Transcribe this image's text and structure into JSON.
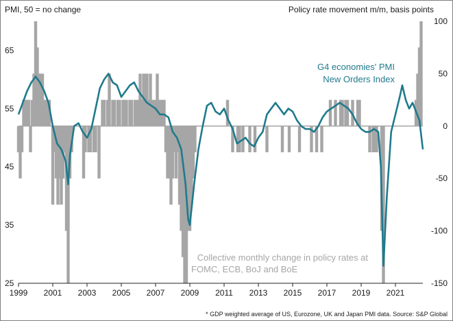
{
  "chart_data": {
    "type": "bar+line",
    "left_axis_label": "PMI, 50 = no change",
    "right_axis_label": "Policy rate movement m/m, basis points",
    "left_ylim": [
      25,
      70
    ],
    "left_ticks": [
      25,
      35,
      45,
      55,
      65
    ],
    "right_ylim": [
      -150,
      100
    ],
    "right_ticks": [
      -150,
      -100,
      -50,
      0,
      50,
      100
    ],
    "x_range": [
      1999.0,
      2022.6
    ],
    "x_ticks": [
      1999,
      2001,
      2003,
      2005,
      2007,
      2009,
      2011,
      2013,
      2015,
      2017,
      2019,
      2021
    ],
    "x_tick_labels": [
      "1999",
      "2001",
      "2003",
      "2005",
      "2007",
      "2009",
      "2011",
      "2013",
      "2015",
      "2017",
      "2019",
      "2021"
    ],
    "grid": false,
    "legend": "none",
    "series": [
      {
        "name": "G4 economies' PMI New Orders Index",
        "axis": "left",
        "kind": "line",
        "color": "#1f7a8c",
        "x": [
          1999.0,
          1999.25,
          1999.5,
          1999.75,
          2000.0,
          2000.25,
          2000.5,
          2000.75,
          2001.0,
          2001.25,
          2001.5,
          2001.75,
          2001.9,
          2002.0,
          2002.25,
          2002.5,
          2002.75,
          2003.0,
          2003.25,
          2003.5,
          2003.75,
          2004.0,
          2004.25,
          2004.5,
          2004.75,
          2005.0,
          2005.25,
          2005.5,
          2005.75,
          2006.0,
          2006.25,
          2006.5,
          2006.75,
          2007.0,
          2007.25,
          2007.5,
          2007.75,
          2008.0,
          2008.25,
          2008.5,
          2008.75,
          2008.9,
          2009.0,
          2009.25,
          2009.5,
          2009.75,
          2010.0,
          2010.25,
          2010.5,
          2010.75,
          2011.0,
          2011.25,
          2011.5,
          2011.75,
          2012.0,
          2012.25,
          2012.5,
          2012.75,
          2013.0,
          2013.25,
          2013.5,
          2013.75,
          2014.0,
          2014.25,
          2014.5,
          2014.75,
          2015.0,
          2015.25,
          2015.5,
          2015.75,
          2016.0,
          2016.25,
          2016.5,
          2016.75,
          2017.0,
          2017.25,
          2017.5,
          2017.75,
          2018.0,
          2018.25,
          2018.5,
          2018.75,
          2019.0,
          2019.25,
          2019.5,
          2019.75,
          2020.0,
          2020.15,
          2020.3,
          2020.5,
          2020.75,
          2021.0,
          2021.25,
          2021.4,
          2021.6,
          2021.8,
          2022.0,
          2022.2,
          2022.4,
          2022.6
        ],
        "values": [
          54.0,
          56.0,
          58.0,
          59.5,
          60.5,
          59.5,
          58.0,
          56.0,
          52.0,
          49.0,
          48.0,
          46.0,
          42.0,
          47.0,
          52.0,
          52.5,
          51.0,
          50.0,
          51.5,
          55.0,
          58.5,
          60.0,
          61.0,
          59.5,
          59.0,
          57.0,
          58.0,
          59.0,
          59.5,
          58.0,
          57.0,
          56.0,
          55.5,
          55.0,
          54.0,
          54.0,
          53.5,
          51.0,
          50.0,
          48.0,
          42.0,
          36.0,
          35.0,
          42.0,
          48.0,
          52.0,
          55.5,
          56.0,
          54.5,
          54.0,
          55.0,
          53.0,
          51.5,
          49.0,
          49.5,
          50.0,
          49.0,
          48.5,
          50.0,
          51.0,
          54.0,
          55.0,
          56.0,
          55.0,
          54.0,
          55.0,
          54.5,
          53.0,
          52.0,
          51.5,
          51.5,
          51.0,
          52.0,
          53.5,
          54.5,
          55.0,
          55.5,
          56.0,
          55.5,
          55.0,
          54.0,
          52.5,
          51.5,
          51.0,
          51.0,
          51.5,
          51.0,
          45.0,
          28.0,
          40.0,
          51.0,
          54.0,
          57.0,
          59.0,
          56.5,
          55.0,
          56.0,
          54.5,
          53.0,
          48.0
        ]
      },
      {
        "name": "Collective monthly change in policy rates at FOMC, ECB, BoJ and BoE",
        "axis": "right",
        "kind": "bar",
        "color": "#a6a6a6",
        "x": [
          1999.0,
          1999.1,
          1999.2,
          1999.3,
          1999.4,
          1999.5,
          1999.6,
          1999.7,
          1999.8,
          1999.9,
          2000.0,
          2000.1,
          2000.2,
          2000.3,
          2000.4,
          2000.5,
          2000.6,
          2000.7,
          2000.8,
          2001.0,
          2001.1,
          2001.2,
          2001.3,
          2001.4,
          2001.5,
          2001.6,
          2001.7,
          2001.8,
          2001.9,
          2002.0,
          2002.1,
          2002.8,
          2002.9,
          2003.1,
          2003.2,
          2003.4,
          2003.5,
          2003.7,
          2003.9,
          2004.0,
          2004.2,
          2004.3,
          2004.5,
          2004.6,
          2004.8,
          2004.9,
          2005.1,
          2005.2,
          2005.3,
          2005.5,
          2005.6,
          2005.8,
          2005.9,
          2006.0,
          2006.1,
          2006.2,
          2006.3,
          2006.4,
          2006.5,
          2006.6,
          2006.7,
          2006.8,
          2006.9,
          2007.0,
          2007.1,
          2007.2,
          2007.3,
          2007.4,
          2007.5,
          2007.6,
          2007.7,
          2007.8,
          2007.9,
          2008.0,
          2008.1,
          2008.2,
          2008.3,
          2008.4,
          2008.5,
          2008.6,
          2008.7,
          2008.8,
          2008.9,
          2009.0,
          2009.1,
          2009.2,
          2009.3,
          2011.2,
          2011.5,
          2011.8,
          2011.9,
          2012.1,
          2012.5,
          2012.8,
          2013.5,
          2014.4,
          2014.8,
          2015.4,
          2016.1,
          2016.4,
          2016.7,
          2017.2,
          2017.5,
          2017.8,
          2017.9,
          2018.1,
          2018.2,
          2018.5,
          2018.8,
          2018.9,
          2019.5,
          2019.7,
          2019.8,
          2019.9,
          2020.2,
          2020.3,
          2022.2,
          2022.3,
          2022.4,
          2022.5
        ],
        "values": [
          -25,
          -50,
          -25,
          25,
          25,
          25,
          25,
          -25,
          25,
          50,
          100,
          75,
          50,
          50,
          50,
          25,
          25,
          25,
          25,
          -75,
          -25,
          -50,
          -75,
          -50,
          -75,
          -50,
          -25,
          -100,
          -150,
          -50,
          -25,
          -50,
          -25,
          -25,
          -25,
          -25,
          -25,
          -50,
          25,
          25,
          25,
          50,
          25,
          25,
          25,
          25,
          25,
          25,
          25,
          25,
          25,
          25,
          25,
          25,
          50,
          25,
          50,
          50,
          50,
          25,
          50,
          25,
          25,
          25,
          50,
          25,
          25,
          25,
          25,
          -25,
          -50,
          -50,
          -75,
          -50,
          -25,
          -50,
          -25,
          -75,
          -100,
          -125,
          -150,
          -175,
          -100,
          -100,
          -75,
          -50,
          -25,
          25,
          -25,
          -25,
          -25,
          -25,
          -25,
          -25,
          -25,
          -25,
          -25,
          -25,
          -25,
          -25,
          -25,
          25,
          25,
          25,
          25,
          25,
          25,
          25,
          25,
          25,
          -25,
          -25,
          -25,
          -25,
          -100,
          -175,
          25,
          50,
          75,
          100
        ]
      }
    ],
    "annotations": {
      "pmi_line1": "G4 economies' PMI",
      "pmi_line2": "New Orders Index",
      "rate_line1": "Collective monthly change in policy rates at",
      "rate_line2": "FOMC, ECB, BoJ and BoE"
    },
    "source": "* GDP weighted average of US, Eurozone, UK and Japan PMI data. Source: S&P Global",
    "colors": {
      "pmi_line": "#1f7a8c",
      "rate_bars": "#a6a6a6",
      "zero_line": "#a6a6a6"
    }
  }
}
